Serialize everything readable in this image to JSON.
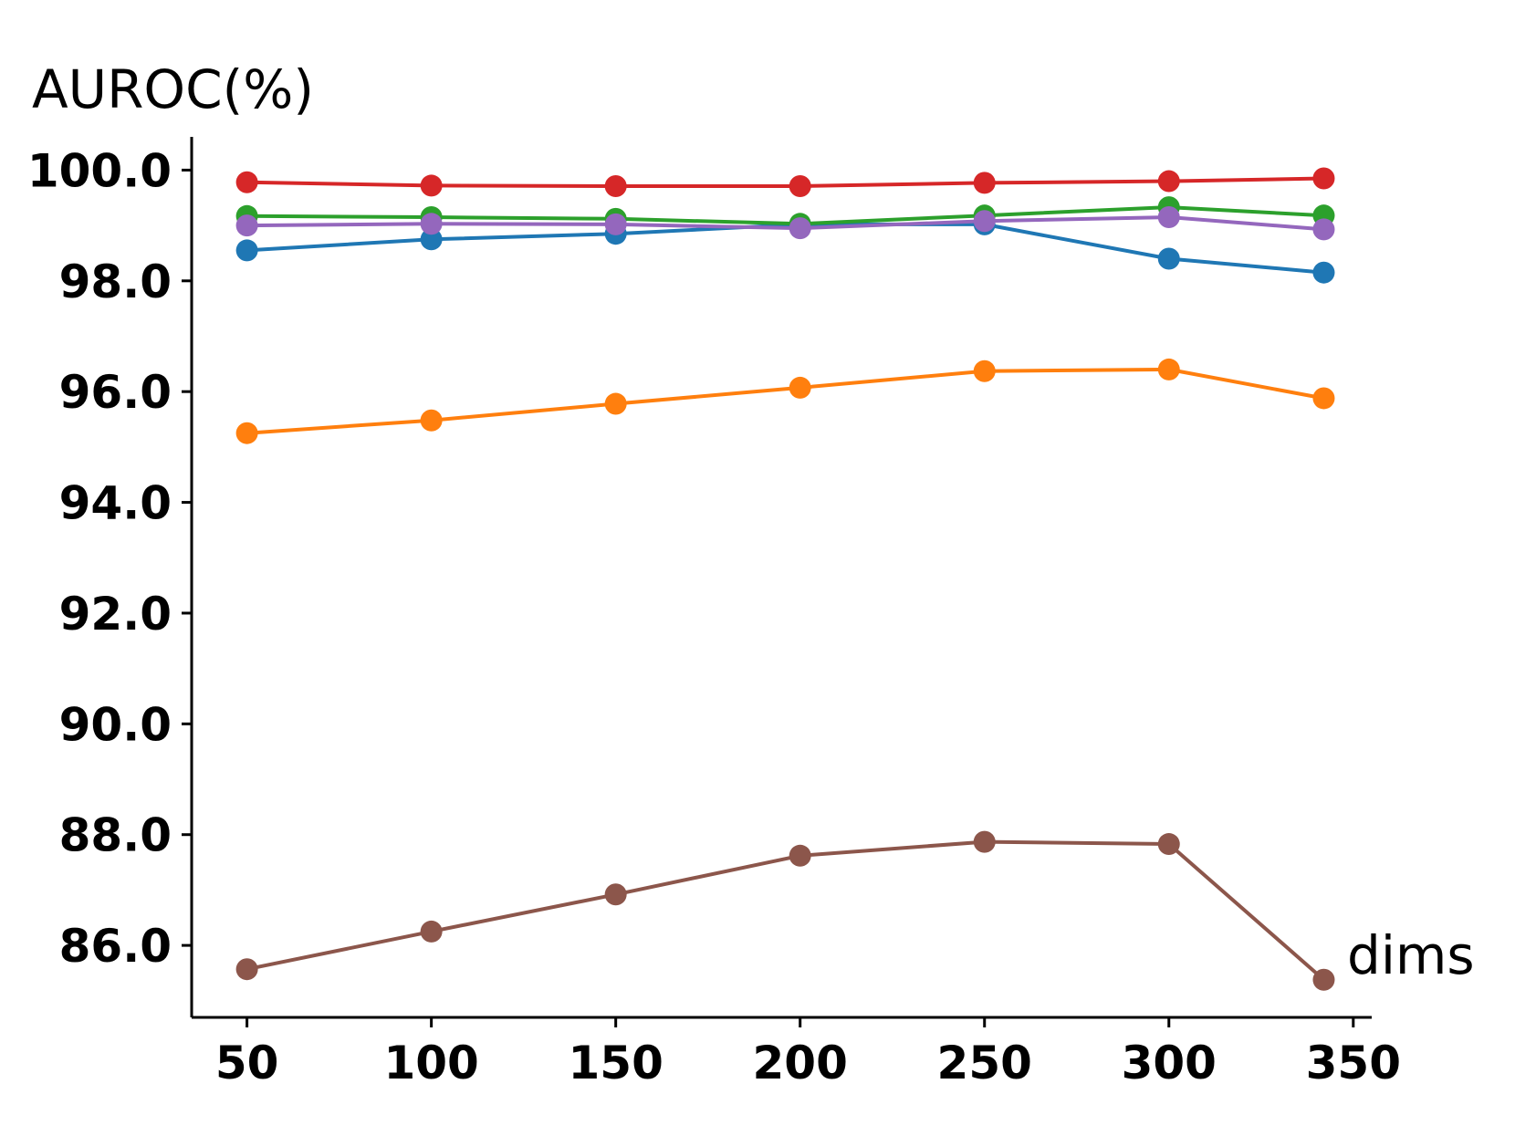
{
  "chart_data": {
    "type": "line",
    "title": "",
    "ylabel": "AUROC(%)",
    "xlabel": "dims",
    "xlim": [
      35,
      355
    ],
    "ylim": [
      84.7,
      100.6
    ],
    "xticks": [
      50,
      100,
      150,
      200,
      250,
      300,
      350
    ],
    "yticks": [
      86.0,
      88.0,
      90.0,
      92.0,
      94.0,
      96.0,
      98.0,
      100.0
    ],
    "x": [
      50,
      100,
      150,
      200,
      250,
      300,
      342
    ],
    "grid": false,
    "series": [
      {
        "name": "blue",
        "color": "#1f77b4",
        "values": [
          98.55,
          98.75,
          98.85,
          99.02,
          99.02,
          98.4,
          98.15
        ]
      },
      {
        "name": "orange",
        "color": "#ff7f0e",
        "values": [
          95.25,
          95.48,
          95.78,
          96.07,
          96.37,
          96.4,
          95.88
        ]
      },
      {
        "name": "green",
        "color": "#2ca02c",
        "values": [
          99.17,
          99.15,
          99.12,
          99.03,
          99.18,
          99.33,
          99.18
        ]
      },
      {
        "name": "red",
        "color": "#d62728",
        "values": [
          99.78,
          99.72,
          99.71,
          99.71,
          99.77,
          99.8,
          99.85
        ]
      },
      {
        "name": "purple",
        "color": "#9467bd",
        "values": [
          99.0,
          99.03,
          99.02,
          98.95,
          99.08,
          99.15,
          98.93
        ]
      },
      {
        "name": "brown",
        "color": "#8c564b",
        "values": [
          85.57,
          86.25,
          86.92,
          87.62,
          87.87,
          87.83,
          85.38
        ]
      }
    ]
  }
}
